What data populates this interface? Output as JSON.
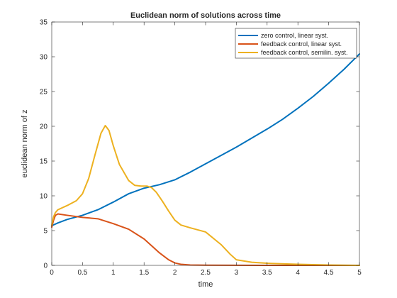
{
  "chart_data": {
    "type": "line",
    "title": "Euclidean norm of solutions across time",
    "xlabel": "time",
    "ylabel": "euclidean norm of z",
    "xlim": [
      0,
      5
    ],
    "ylim": [
      0,
      35
    ],
    "x_ticks": [
      "0",
      "0.5",
      "1",
      "1.5",
      "2",
      "2.5",
      "3",
      "3.5",
      "4",
      "4.5",
      "5"
    ],
    "y_ticks": [
      "0",
      "5",
      "10",
      "15",
      "20",
      "25",
      "30",
      "35"
    ],
    "grid": false,
    "legend_position": "top-right",
    "series": [
      {
        "name": "zero control, linear syst.",
        "color": "#0072BD",
        "x": [
          0,
          0.1,
          0.25,
          0.5,
          0.75,
          1.0,
          1.25,
          1.5,
          1.75,
          2.0,
          2.25,
          2.5,
          2.75,
          3.0,
          3.25,
          3.5,
          3.75,
          4.0,
          4.25,
          4.5,
          4.75,
          5.0
        ],
        "y": [
          5.7,
          6.1,
          6.6,
          7.2,
          8.0,
          9.1,
          10.3,
          11.1,
          11.6,
          12.3,
          13.4,
          14.6,
          15.8,
          17.0,
          18.3,
          19.6,
          21.0,
          22.6,
          24.3,
          26.2,
          28.2,
          30.4
        ]
      },
      {
        "name": "feedback control, linear syst.",
        "color": "#D95319",
        "x": [
          0,
          0.03,
          0.06,
          0.1,
          0.25,
          0.5,
          0.75,
          1.0,
          1.25,
          1.5,
          1.75,
          1.9,
          2.0,
          2.1,
          2.25,
          2.5,
          3.0,
          3.5,
          4.0,
          4.5,
          5.0
        ],
        "y": [
          5.5,
          6.5,
          7.2,
          7.4,
          7.2,
          6.9,
          6.7,
          6.0,
          5.2,
          3.8,
          1.8,
          0.8,
          0.35,
          0.15,
          0.05,
          0.02,
          0.01,
          0.0,
          0.0,
          0.0,
          0.0
        ]
      },
      {
        "name": "feedback control, semilin. syst.",
        "color": "#EDB120",
        "x": [
          0,
          0.03,
          0.06,
          0.1,
          0.25,
          0.4,
          0.5,
          0.6,
          0.7,
          0.8,
          0.87,
          0.93,
          1.0,
          1.1,
          1.25,
          1.35,
          1.45,
          1.55,
          1.62,
          1.7,
          1.8,
          1.9,
          2.0,
          2.1,
          2.25,
          2.5,
          2.75,
          2.9,
          3.0,
          3.25,
          3.5,
          4.0,
          4.5,
          5.0
        ],
        "y": [
          5.8,
          7.0,
          7.6,
          8.0,
          8.6,
          9.3,
          10.3,
          12.5,
          15.8,
          19.0,
          20.1,
          19.4,
          17.2,
          14.5,
          12.2,
          11.5,
          11.4,
          11.4,
          11.2,
          10.5,
          9.2,
          7.8,
          6.5,
          5.8,
          5.4,
          4.8,
          3.0,
          1.6,
          0.8,
          0.45,
          0.3,
          0.15,
          0.05,
          0.0
        ]
      }
    ]
  }
}
